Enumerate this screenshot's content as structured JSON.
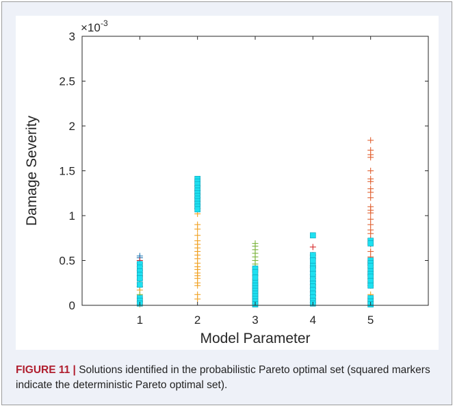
{
  "caption": {
    "label": "FIGURE 11 |",
    "text": " Solutions identified in the probabilistic Pareto optimal set (squared markers indicate the deterministic Pareto optimal set)."
  },
  "chart_data": {
    "type": "scatter",
    "xlabel": "Model Parameter",
    "ylabel": "Damage Severity",
    "y_multiplier_label": "×10",
    "y_multiplier_exponent": "-3",
    "xlim": [
      0,
      6
    ],
    "ylim": [
      0,
      3
    ],
    "x_ticks": [
      1,
      2,
      3,
      4,
      5
    ],
    "x_tick_labels": [
      "1",
      "2",
      "3",
      "4",
      "5"
    ],
    "y_ticks": [
      0,
      0.5,
      1,
      1.5,
      2,
      2.5,
      3
    ],
    "y_tick_labels": [
      "0",
      "0.5",
      "1",
      "1.5",
      "2",
      "2.5",
      "3"
    ],
    "grid": false,
    "marker_colors": {
      "probabilistic": [
        "#1f77b4",
        "#d62728",
        "#f0a020",
        "#7ab33a",
        "#e06030"
      ],
      "deterministic": "#1ee0f0"
    },
    "series": [
      {
        "marker": "plus",
        "points": [
          {
            "x": 1,
            "y": 0.55,
            "c": "#1f77b4"
          },
          {
            "x": 1,
            "y": 0.53,
            "c": "#1f77b4"
          },
          {
            "x": 1,
            "y": 0.5,
            "c": "#d62728"
          },
          {
            "x": 1,
            "y": 0.47,
            "c": "#1f77b4"
          },
          {
            "x": 1,
            "y": 0.43,
            "c": "#7ab33a"
          },
          {
            "x": 1,
            "y": 0.39,
            "c": "#1f77b4"
          },
          {
            "x": 1,
            "y": 0.33,
            "c": "#d62728"
          },
          {
            "x": 1,
            "y": 0.29,
            "c": "#1f77b4"
          },
          {
            "x": 1,
            "y": 0.25,
            "c": "#7ab33a"
          },
          {
            "x": 1,
            "y": 0.21,
            "c": "#1f77b4"
          },
          {
            "x": 1,
            "y": 0.17,
            "c": "#f0a020"
          },
          {
            "x": 1,
            "y": 0.12,
            "c": "#7ab33a"
          },
          {
            "x": 1,
            "y": 0.08,
            "c": "#f0a020"
          },
          {
            "x": 1,
            "y": 0.04,
            "c": "#7ab33a"
          },
          {
            "x": 1,
            "y": 0.01,
            "c": "#f0a020"
          },
          {
            "x": 2,
            "y": 1.33,
            "c": "#d62728"
          },
          {
            "x": 2,
            "y": 1.28,
            "c": "#1f77b4"
          },
          {
            "x": 2,
            "y": 1.24,
            "c": "#d62728"
          },
          {
            "x": 2,
            "y": 1.2,
            "c": "#1f77b4"
          },
          {
            "x": 2,
            "y": 1.16,
            "c": "#d62728"
          },
          {
            "x": 2,
            "y": 1.12,
            "c": "#1f77b4"
          },
          {
            "x": 2,
            "y": 1.08,
            "c": "#d62728"
          },
          {
            "x": 2,
            "y": 1.02,
            "c": "#f0a020"
          },
          {
            "x": 2,
            "y": 0.9,
            "c": "#f0a020"
          },
          {
            "x": 2,
            "y": 0.85,
            "c": "#f0a020"
          },
          {
            "x": 2,
            "y": 0.78,
            "c": "#f0a020"
          },
          {
            "x": 2,
            "y": 0.72,
            "c": "#f0a020"
          },
          {
            "x": 2,
            "y": 0.68,
            "c": "#f0a020"
          },
          {
            "x": 2,
            "y": 0.64,
            "c": "#f0a020"
          },
          {
            "x": 2,
            "y": 0.6,
            "c": "#f0a020"
          },
          {
            "x": 2,
            "y": 0.56,
            "c": "#f0a020"
          },
          {
            "x": 2,
            "y": 0.52,
            "c": "#f0a020"
          },
          {
            "x": 2,
            "y": 0.47,
            "c": "#f0a020"
          },
          {
            "x": 2,
            "y": 0.43,
            "c": "#f0a020"
          },
          {
            "x": 2,
            "y": 0.4,
            "c": "#f0a020"
          },
          {
            "x": 2,
            "y": 0.36,
            "c": "#f0a020"
          },
          {
            "x": 2,
            "y": 0.33,
            "c": "#f0a020"
          },
          {
            "x": 2,
            "y": 0.3,
            "c": "#f0a020"
          },
          {
            "x": 2,
            "y": 0.25,
            "c": "#f0a020"
          },
          {
            "x": 2,
            "y": 0.22,
            "c": "#f0a020"
          },
          {
            "x": 2,
            "y": 0.12,
            "c": "#f0a020"
          },
          {
            "x": 2,
            "y": 0.07,
            "c": "#f0a020"
          },
          {
            "x": 3,
            "y": 0.69,
            "c": "#7ab33a"
          },
          {
            "x": 3,
            "y": 0.66,
            "c": "#7ab33a"
          },
          {
            "x": 3,
            "y": 0.62,
            "c": "#7ab33a"
          },
          {
            "x": 3,
            "y": 0.58,
            "c": "#7ab33a"
          },
          {
            "x": 3,
            "y": 0.54,
            "c": "#7ab33a"
          },
          {
            "x": 3,
            "y": 0.5,
            "c": "#7ab33a"
          },
          {
            "x": 3,
            "y": 0.46,
            "c": "#7ab33a"
          },
          {
            "x": 3,
            "y": 0.42,
            "c": "#7ab33a"
          },
          {
            "x": 3,
            "y": 0.37,
            "c": "#7ab33a"
          },
          {
            "x": 3,
            "y": 0.33,
            "c": "#7ab33a"
          },
          {
            "x": 3,
            "y": 0.29,
            "c": "#7ab33a"
          },
          {
            "x": 3,
            "y": 0.26,
            "c": "#7ab33a"
          },
          {
            "x": 3,
            "y": 0.22,
            "c": "#f0a020"
          },
          {
            "x": 3,
            "y": 0.18,
            "c": "#7ab33a"
          },
          {
            "x": 3,
            "y": 0.14,
            "c": "#f0a020"
          },
          {
            "x": 3,
            "y": 0.1,
            "c": "#7ab33a"
          },
          {
            "x": 3,
            "y": 0.06,
            "c": "#f0a020"
          },
          {
            "x": 3,
            "y": 0.02,
            "c": "#7ab33a"
          },
          {
            "x": 4,
            "y": 0.65,
            "c": "#d62728"
          },
          {
            "x": 4,
            "y": 0.56,
            "c": "#d62728"
          },
          {
            "x": 4,
            "y": 0.52,
            "c": "#1f77b4"
          },
          {
            "x": 4,
            "y": 0.44,
            "c": "#d62728"
          },
          {
            "x": 4,
            "y": 0.42,
            "c": "#d62728"
          },
          {
            "x": 4,
            "y": 0.38,
            "c": "#1f77b4"
          },
          {
            "x": 4,
            "y": 0.34,
            "c": "#1f77b4"
          },
          {
            "x": 4,
            "y": 0.3,
            "c": "#d62728"
          },
          {
            "x": 4,
            "y": 0.27,
            "c": "#1f77b4"
          },
          {
            "x": 4,
            "y": 0.23,
            "c": "#d62728"
          },
          {
            "x": 4,
            "y": 0.19,
            "c": "#1f77b4"
          },
          {
            "x": 4,
            "y": 0.15,
            "c": "#d62728"
          },
          {
            "x": 4,
            "y": 0.11,
            "c": "#1f77b4"
          },
          {
            "x": 4,
            "y": 0.07,
            "c": "#d62728"
          },
          {
            "x": 4,
            "y": 0.03,
            "c": "#1f77b4"
          },
          {
            "x": 5,
            "y": 1.84,
            "c": "#e06030"
          },
          {
            "x": 5,
            "y": 1.73,
            "c": "#e06030"
          },
          {
            "x": 5,
            "y": 1.68,
            "c": "#e06030"
          },
          {
            "x": 5,
            "y": 1.65,
            "c": "#e06030"
          },
          {
            "x": 5,
            "y": 1.5,
            "c": "#e06030"
          },
          {
            "x": 5,
            "y": 1.41,
            "c": "#e06030"
          },
          {
            "x": 5,
            "y": 1.38,
            "c": "#e06030"
          },
          {
            "x": 5,
            "y": 1.3,
            "c": "#e06030"
          },
          {
            "x": 5,
            "y": 1.26,
            "c": "#e06030"
          },
          {
            "x": 5,
            "y": 1.2,
            "c": "#e06030"
          },
          {
            "x": 5,
            "y": 1.1,
            "c": "#e06030"
          },
          {
            "x": 5,
            "y": 1.06,
            "c": "#e06030"
          },
          {
            "x": 5,
            "y": 1.03,
            "c": "#e06030"
          },
          {
            "x": 5,
            "y": 0.96,
            "c": "#e06030"
          },
          {
            "x": 5,
            "y": 0.9,
            "c": "#e06030"
          },
          {
            "x": 5,
            "y": 0.84,
            "c": "#e06030"
          },
          {
            "x": 5,
            "y": 0.8,
            "c": "#e06030"
          },
          {
            "x": 5,
            "y": 0.74,
            "c": "#e06030"
          },
          {
            "x": 5,
            "y": 0.68,
            "c": "#e06030"
          },
          {
            "x": 5,
            "y": 0.6,
            "c": "#e06030"
          },
          {
            "x": 5,
            "y": 0.54,
            "c": "#e06030"
          },
          {
            "x": 5,
            "y": 0.48,
            "c": "#f0a020"
          },
          {
            "x": 5,
            "y": 0.45,
            "c": "#e06030"
          },
          {
            "x": 5,
            "y": 0.42,
            "c": "#f0a020"
          },
          {
            "x": 5,
            "y": 0.38,
            "c": "#f0a020"
          },
          {
            "x": 5,
            "y": 0.34,
            "c": "#e06030"
          },
          {
            "x": 5,
            "y": 0.3,
            "c": "#f0a020"
          },
          {
            "x": 5,
            "y": 0.26,
            "c": "#f0a020"
          },
          {
            "x": 5,
            "y": 0.22,
            "c": "#e06030"
          },
          {
            "x": 5,
            "y": 0.12,
            "c": "#f0a020"
          },
          {
            "x": 5,
            "y": 0.08,
            "c": "#e06030"
          },
          {
            "x": 5,
            "y": 0.04,
            "c": "#f0a020"
          }
        ]
      },
      {
        "marker": "square",
        "points": [
          {
            "x": 1,
            "y": 0.46
          },
          {
            "x": 1,
            "y": 0.42
          },
          {
            "x": 1,
            "y": 0.38
          },
          {
            "x": 1,
            "y": 0.34
          },
          {
            "x": 1,
            "y": 0.3
          },
          {
            "x": 1,
            "y": 0.23
          },
          {
            "x": 1,
            "y": 0.08
          },
          {
            "x": 1,
            "y": 0.05
          },
          {
            "x": 1,
            "y": 0.02
          },
          {
            "x": 2,
            "y": 1.41
          },
          {
            "x": 2,
            "y": 1.38
          },
          {
            "x": 2,
            "y": 1.35
          },
          {
            "x": 2,
            "y": 1.31
          },
          {
            "x": 2,
            "y": 1.28
          },
          {
            "x": 2,
            "y": 1.25
          },
          {
            "x": 2,
            "y": 1.22
          },
          {
            "x": 2,
            "y": 1.19
          },
          {
            "x": 2,
            "y": 1.16
          },
          {
            "x": 2,
            "y": 1.13
          },
          {
            "x": 2,
            "y": 1.1
          },
          {
            "x": 2,
            "y": 1.07
          },
          {
            "x": 3,
            "y": 0.41
          },
          {
            "x": 3,
            "y": 0.37
          },
          {
            "x": 3,
            "y": 0.31
          },
          {
            "x": 3,
            "y": 0.25
          },
          {
            "x": 3,
            "y": 0.22
          },
          {
            "x": 3,
            "y": 0.19
          },
          {
            "x": 3,
            "y": 0.16
          },
          {
            "x": 3,
            "y": 0.13
          },
          {
            "x": 3,
            "y": 0.1
          },
          {
            "x": 3,
            "y": 0.07
          },
          {
            "x": 3,
            "y": 0.04
          },
          {
            "x": 3,
            "y": 0.01
          },
          {
            "x": 4,
            "y": 0.78
          },
          {
            "x": 4,
            "y": 0.56
          },
          {
            "x": 4,
            "y": 0.5
          },
          {
            "x": 4,
            "y": 0.44
          },
          {
            "x": 4,
            "y": 0.41
          },
          {
            "x": 4,
            "y": 0.35
          },
          {
            "x": 4,
            "y": 0.29
          },
          {
            "x": 4,
            "y": 0.24
          },
          {
            "x": 4,
            "y": 0.21
          },
          {
            "x": 4,
            "y": 0.17
          },
          {
            "x": 4,
            "y": 0.13
          },
          {
            "x": 4,
            "y": 0.09
          },
          {
            "x": 4,
            "y": 0.05
          },
          {
            "x": 4,
            "y": 0.02
          },
          {
            "x": 5,
            "y": 0.72
          },
          {
            "x": 5,
            "y": 0.69
          },
          {
            "x": 5,
            "y": 0.5
          },
          {
            "x": 5,
            "y": 0.47
          },
          {
            "x": 5,
            "y": 0.44
          },
          {
            "x": 5,
            "y": 0.38
          },
          {
            "x": 5,
            "y": 0.35
          },
          {
            "x": 5,
            "y": 0.32
          },
          {
            "x": 5,
            "y": 0.27
          },
          {
            "x": 5,
            "y": 0.22
          },
          {
            "x": 5,
            "y": 0.08
          },
          {
            "x": 5,
            "y": 0.04
          },
          {
            "x": 5,
            "y": 0.01
          }
        ]
      }
    ]
  }
}
